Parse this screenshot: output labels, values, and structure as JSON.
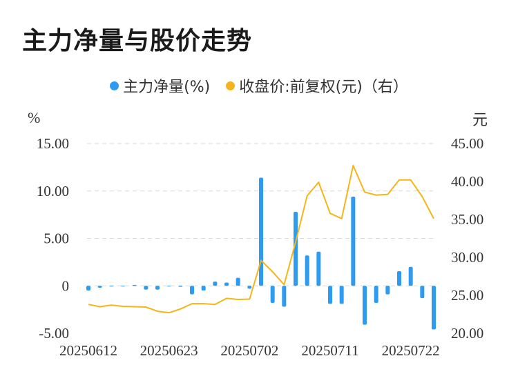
{
  "title": "主力净量与股价走势",
  "legend": [
    {
      "label": "主力净量(%)",
      "color": "#2d9cf0"
    },
    {
      "label": "收盘价:前复权(元)（右）",
      "color": "#f5b518"
    }
  ],
  "left_unit": "%",
  "right_unit": "元",
  "chart_data": {
    "type": "bar+line",
    "x_tick_labels": [
      "20250612",
      "20250623",
      "20250702",
      "20250711",
      "20250722"
    ],
    "left_axis": {
      "ticks": [
        "15.00",
        "10.00",
        "5.00",
        "0",
        "-5.00"
      ],
      "tick_values": [
        15,
        10,
        5,
        0,
        -5
      ],
      "ylim": [
        -5,
        15
      ]
    },
    "right_axis": {
      "ticks": [
        "45.00",
        "40.00",
        "35.00",
        "30.00",
        "25.00",
        "20.00"
      ],
      "tick_values": [
        45,
        40,
        35,
        30,
        25,
        20
      ],
      "ylim": [
        20,
        45
      ]
    },
    "grid": true,
    "series": [
      {
        "name": "主力净量(%)",
        "type": "bar",
        "axis": "left",
        "color": "#2d9cf0",
        "values": [
          -0.5,
          -0.2,
          -0.05,
          -0.05,
          0.1,
          -0.4,
          -0.4,
          -0.05,
          -0.1,
          -0.9,
          -0.5,
          0.45,
          0.35,
          0.85,
          -0.3,
          11.4,
          -1.8,
          -2.2,
          7.8,
          3.2,
          3.6,
          -1.9,
          -1.9,
          9.4,
          -4.1,
          -1.8,
          -0.9,
          1.55,
          2.0,
          -1.3,
          -4.6
        ]
      },
      {
        "name": "收盘价:前复权(元)（右）",
        "type": "line",
        "axis": "right",
        "color": "#f5b518",
        "values": [
          23.8,
          23.5,
          23.7,
          23.55,
          23.5,
          23.45,
          22.9,
          22.7,
          23.2,
          23.9,
          23.9,
          23.8,
          24.6,
          24.45,
          24.5,
          29.6,
          28.1,
          26.4,
          32.0,
          38.1,
          39.9,
          35.8,
          35.1,
          42.1,
          38.6,
          38.2,
          38.3,
          40.2,
          40.2,
          38.0,
          35.1
        ]
      }
    ]
  }
}
